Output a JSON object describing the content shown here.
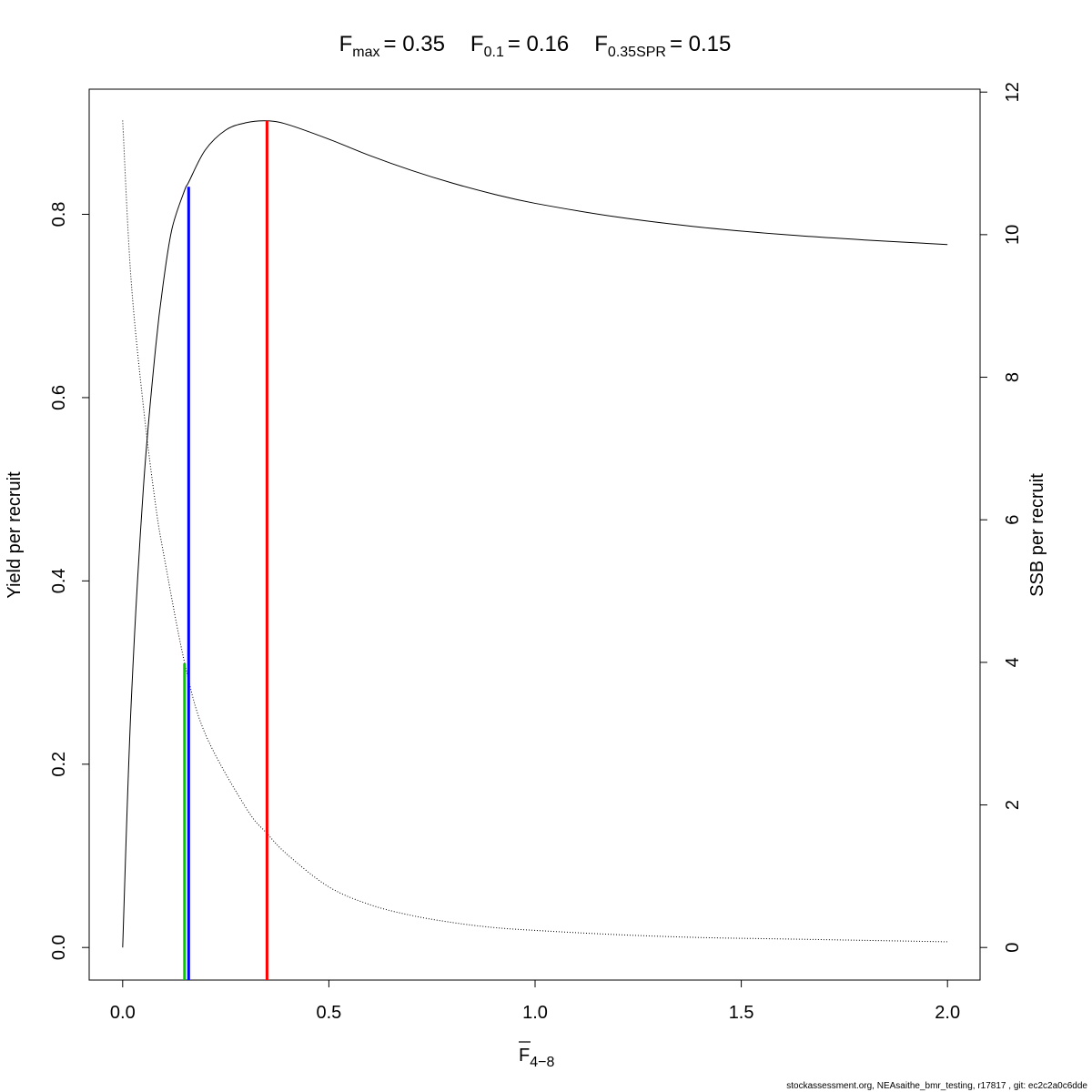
{
  "chart_data": {
    "type": "line",
    "title_parts": [
      {
        "base": "F",
        "sub": "max",
        "value": "= 0.35"
      },
      {
        "base": "F",
        "sub": "0.1",
        "value": "= 0.16"
      },
      {
        "base": "F",
        "sub": "0.35SPR",
        "value": "= 0.15"
      }
    ],
    "xlabel": {
      "base": "F",
      "sub": "4−8",
      "bar": true
    },
    "ylabel_left": "Yield per recruit",
    "ylabel_right": "SSB per recruit",
    "xlim": [
      0,
      2
    ],
    "ylim_left": [
      0,
      0.9
    ],
    "ylim_right": [
      0,
      12
    ],
    "x_ticks": [
      "0.0",
      "0.5",
      "1.0",
      "1.5",
      "2.0"
    ],
    "y_left_ticks": [
      "0.0",
      "0.2",
      "0.4",
      "0.6",
      "0.8"
    ],
    "y_right_ticks": [
      "0",
      "2",
      "4",
      "6",
      "8",
      "10",
      "12"
    ],
    "series": [
      {
        "axis": "left",
        "style": "solid",
        "color": "#000000",
        "x": [
          0,
          0.02,
          0.05,
          0.08,
          0.1,
          0.12,
          0.15,
          0.16,
          0.2,
          0.25,
          0.3,
          0.35,
          0.4,
          0.5,
          0.6,
          0.7,
          0.8,
          0.9,
          1.0,
          1.2,
          1.4,
          1.6,
          1.8,
          2.0
        ],
        "y": [
          0,
          0.26,
          0.5,
          0.655,
          0.73,
          0.785,
          0.826,
          0.835,
          0.87,
          0.892,
          0.9,
          0.902,
          0.898,
          0.882,
          0.864,
          0.848,
          0.834,
          0.822,
          0.812,
          0.797,
          0.786,
          0.778,
          0.772,
          0.767
        ]
      },
      {
        "axis": "right",
        "style": "dotted",
        "color": "#000000",
        "x": [
          0,
          0.02,
          0.05,
          0.08,
          0.1,
          0.15,
          0.2,
          0.3,
          0.35,
          0.4,
          0.5,
          0.6,
          0.7,
          0.8,
          0.9,
          1.0,
          1.2,
          1.4,
          1.6,
          1.8,
          2.0
        ],
        "y": [
          11.6,
          9.4,
          7.6,
          6.2,
          5.5,
          4.0,
          3.0,
          1.95,
          1.6,
          1.3,
          0.85,
          0.6,
          0.45,
          0.35,
          0.28,
          0.24,
          0.18,
          0.14,
          0.12,
          0.1,
          0.08
        ]
      }
    ],
    "reference_lines": [
      {
        "name": "Fmax",
        "x": 0.35,
        "ymax_left": 0.902,
        "color": "#ff0000"
      },
      {
        "name": "F0.1",
        "x": 0.16,
        "ymax_left": 0.83,
        "color": "#0000ff"
      },
      {
        "name": "F0.35SPR",
        "x": 0.15,
        "ymax_left": 0.31,
        "color": "#00cc00"
      }
    ]
  },
  "footer": "stockassessment.org, NEAsaithe_bmr_testing, r17817 , git: ec2c2a0c6dde"
}
